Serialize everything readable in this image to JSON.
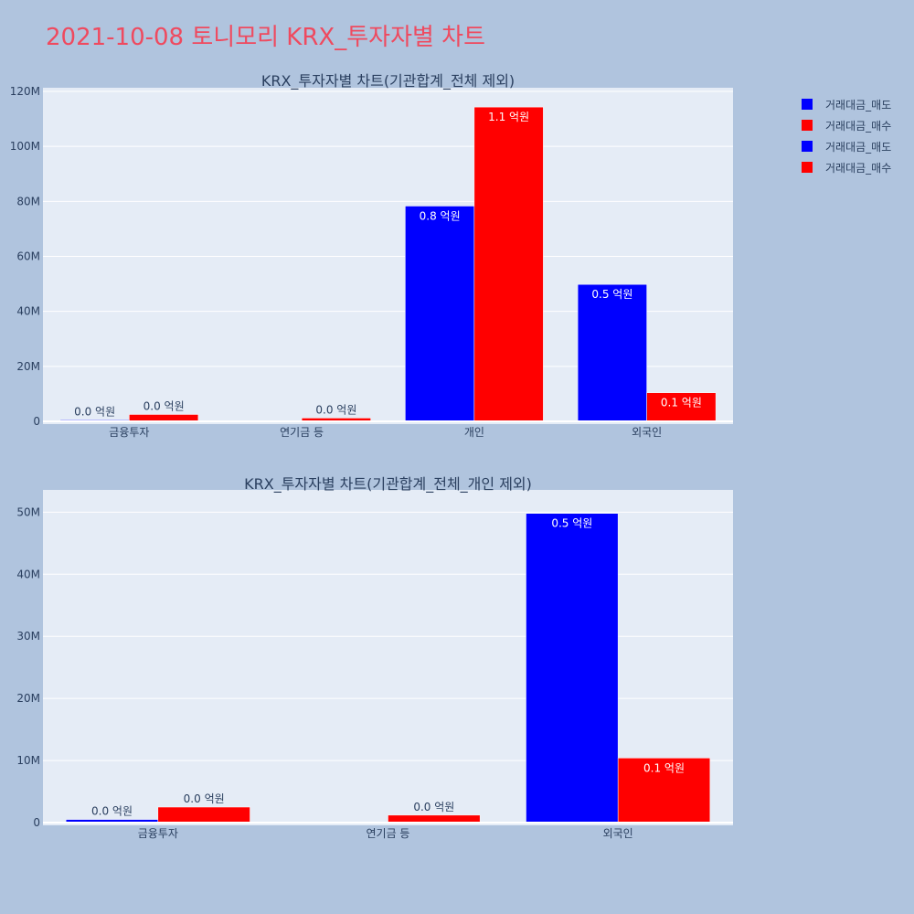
{
  "page": {
    "title": "2021-10-08 토니모리 KRX_투자자별 차트",
    "title_color": "#ef4a5f",
    "background": "#b0c4de",
    "plot_background": "#e5ecf6"
  },
  "legend": {
    "placement": "top-right",
    "items": [
      {
        "label": "거래대금_매도",
        "color": "#0000ff"
      },
      {
        "label": "거래대금_매수",
        "color": "#ff0000"
      },
      {
        "label": "거래대금_매도",
        "color": "#0000ff"
      },
      {
        "label": "거래대금_매수",
        "color": "#ff0000"
      }
    ]
  },
  "chart_data": [
    {
      "type": "bar",
      "title": "KRX_투자자별 차트(기관합계_전체 제외)",
      "categories": [
        "금융투자",
        "연기금 등",
        "개인",
        "외국인"
      ],
      "ylim": [
        0,
        120000000
      ],
      "yticks": [
        0,
        20000000,
        40000000,
        60000000,
        80000000,
        100000000,
        120000000
      ],
      "ytick_labels": [
        "0",
        "20M",
        "40M",
        "60M",
        "80M",
        "100M",
        "120M"
      ],
      "grid": true,
      "series": [
        {
          "name": "거래대금_매도",
          "color": "#0000ff",
          "values": [
            500000,
            0,
            78300000,
            49800000
          ],
          "labels": [
            "0.0 억원",
            "",
            "0.8 억원",
            "0.5 억원"
          ],
          "label_position": [
            "outside",
            "none",
            "inside",
            "inside"
          ]
        },
        {
          "name": "거래대금_매수",
          "color": "#ff0000",
          "values": [
            2500000,
            1200000,
            114300000,
            10400000
          ],
          "labels": [
            "0.0 억원",
            "0.0 억원",
            "1.1 억원",
            "0.1 억원"
          ],
          "label_position": [
            "outside",
            "outside",
            "inside",
            "inside"
          ]
        }
      ]
    },
    {
      "type": "bar",
      "title": "KRX_투자자별 차트(기관합계_전체_개인 제외)",
      "categories": [
        "금융투자",
        "연기금 등",
        "외국인"
      ],
      "ylim": [
        0,
        53000000
      ],
      "yticks": [
        0,
        10000000,
        20000000,
        30000000,
        40000000,
        50000000
      ],
      "ytick_labels": [
        "0",
        "10M",
        "20M",
        "30M",
        "40M",
        "50M"
      ],
      "grid": true,
      "series": [
        {
          "name": "거래대금_매도",
          "color": "#0000ff",
          "values": [
            500000,
            0,
            49800000
          ],
          "labels": [
            "0.0 억원",
            "",
            "0.5 억원"
          ],
          "label_position": [
            "outside",
            "none",
            "inside"
          ]
        },
        {
          "name": "거래대금_매수",
          "color": "#ff0000",
          "values": [
            2500000,
            1200000,
            10400000
          ],
          "labels": [
            "0.0 억원",
            "0.0 억원",
            "0.1 억원"
          ],
          "label_position": [
            "outside",
            "outside",
            "inside"
          ]
        }
      ]
    }
  ]
}
